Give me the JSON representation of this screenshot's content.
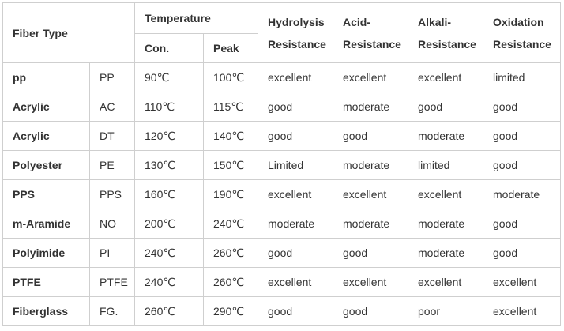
{
  "headers": {
    "fiber_type": "Fiber Type",
    "temperature": "Temperature",
    "con": "Con.",
    "peak": "Peak",
    "hydrolysis_line1": "Hydrolysis",
    "hydrolysis_line2": "Resistance",
    "acid_line1": "Acid-",
    "acid_line2": "Resistance",
    "alkali_line1": "Alkali-",
    "alkali_line2": "Resistance",
    "oxidation_line1": "Oxidation",
    "oxidation_line2": "Resistance"
  },
  "rows": [
    {
      "name": "pp",
      "code": "PP",
      "con": "90℃",
      "peak": "100℃",
      "hydrolysis": "excellent",
      "acid": "excellent",
      "alkali": "excellent",
      "oxidation": "limited"
    },
    {
      "name": "Acrylic",
      "code": "AC",
      "con": "110℃",
      "peak": "115℃",
      "hydrolysis": "good",
      "acid": "moderate",
      "alkali": "good",
      "oxidation": "good"
    },
    {
      "name": "Acrylic",
      "code": "DT",
      "con": "120℃",
      "peak": "140℃",
      "hydrolysis": "good",
      "acid": "good",
      "alkali": "moderate",
      "oxidation": "good"
    },
    {
      "name": "Polyester",
      "code": "PE",
      "con": "130℃",
      "peak": "150℃",
      "hydrolysis": "Limited",
      "acid": "moderate",
      "alkali": "limited",
      "oxidation": "good"
    },
    {
      "name": "PPS",
      "code": "PPS",
      "con": "160℃",
      "peak": "190℃",
      "hydrolysis": "excellent",
      "acid": "excellent",
      "alkali": "excellent",
      "oxidation": "moderate"
    },
    {
      "name": "m-Aramide",
      "code": "NO",
      "con": "200℃",
      "peak": "240℃",
      "hydrolysis": "moderate",
      "acid": "moderate",
      "alkali": "moderate",
      "oxidation": "good"
    },
    {
      "name": "Polyimide",
      "code": "PI",
      "con": "240℃",
      "peak": "260℃",
      "hydrolysis": "good",
      "acid": "good",
      "alkali": "moderate",
      "oxidation": "good"
    },
    {
      "name": "PTFE",
      "code": "PTFE",
      "con": "240℃",
      "peak": "260℃",
      "hydrolysis": "excellent",
      "acid": "excellent",
      "alkali": "excellent",
      "oxidation": "excellent"
    },
    {
      "name": "Fiberglass",
      "code": "FG.",
      "con": "260℃",
      "peak": "290℃",
      "hydrolysis": "good",
      "acid": "good",
      "alkali": "poor",
      "oxidation": "excellent"
    }
  ]
}
